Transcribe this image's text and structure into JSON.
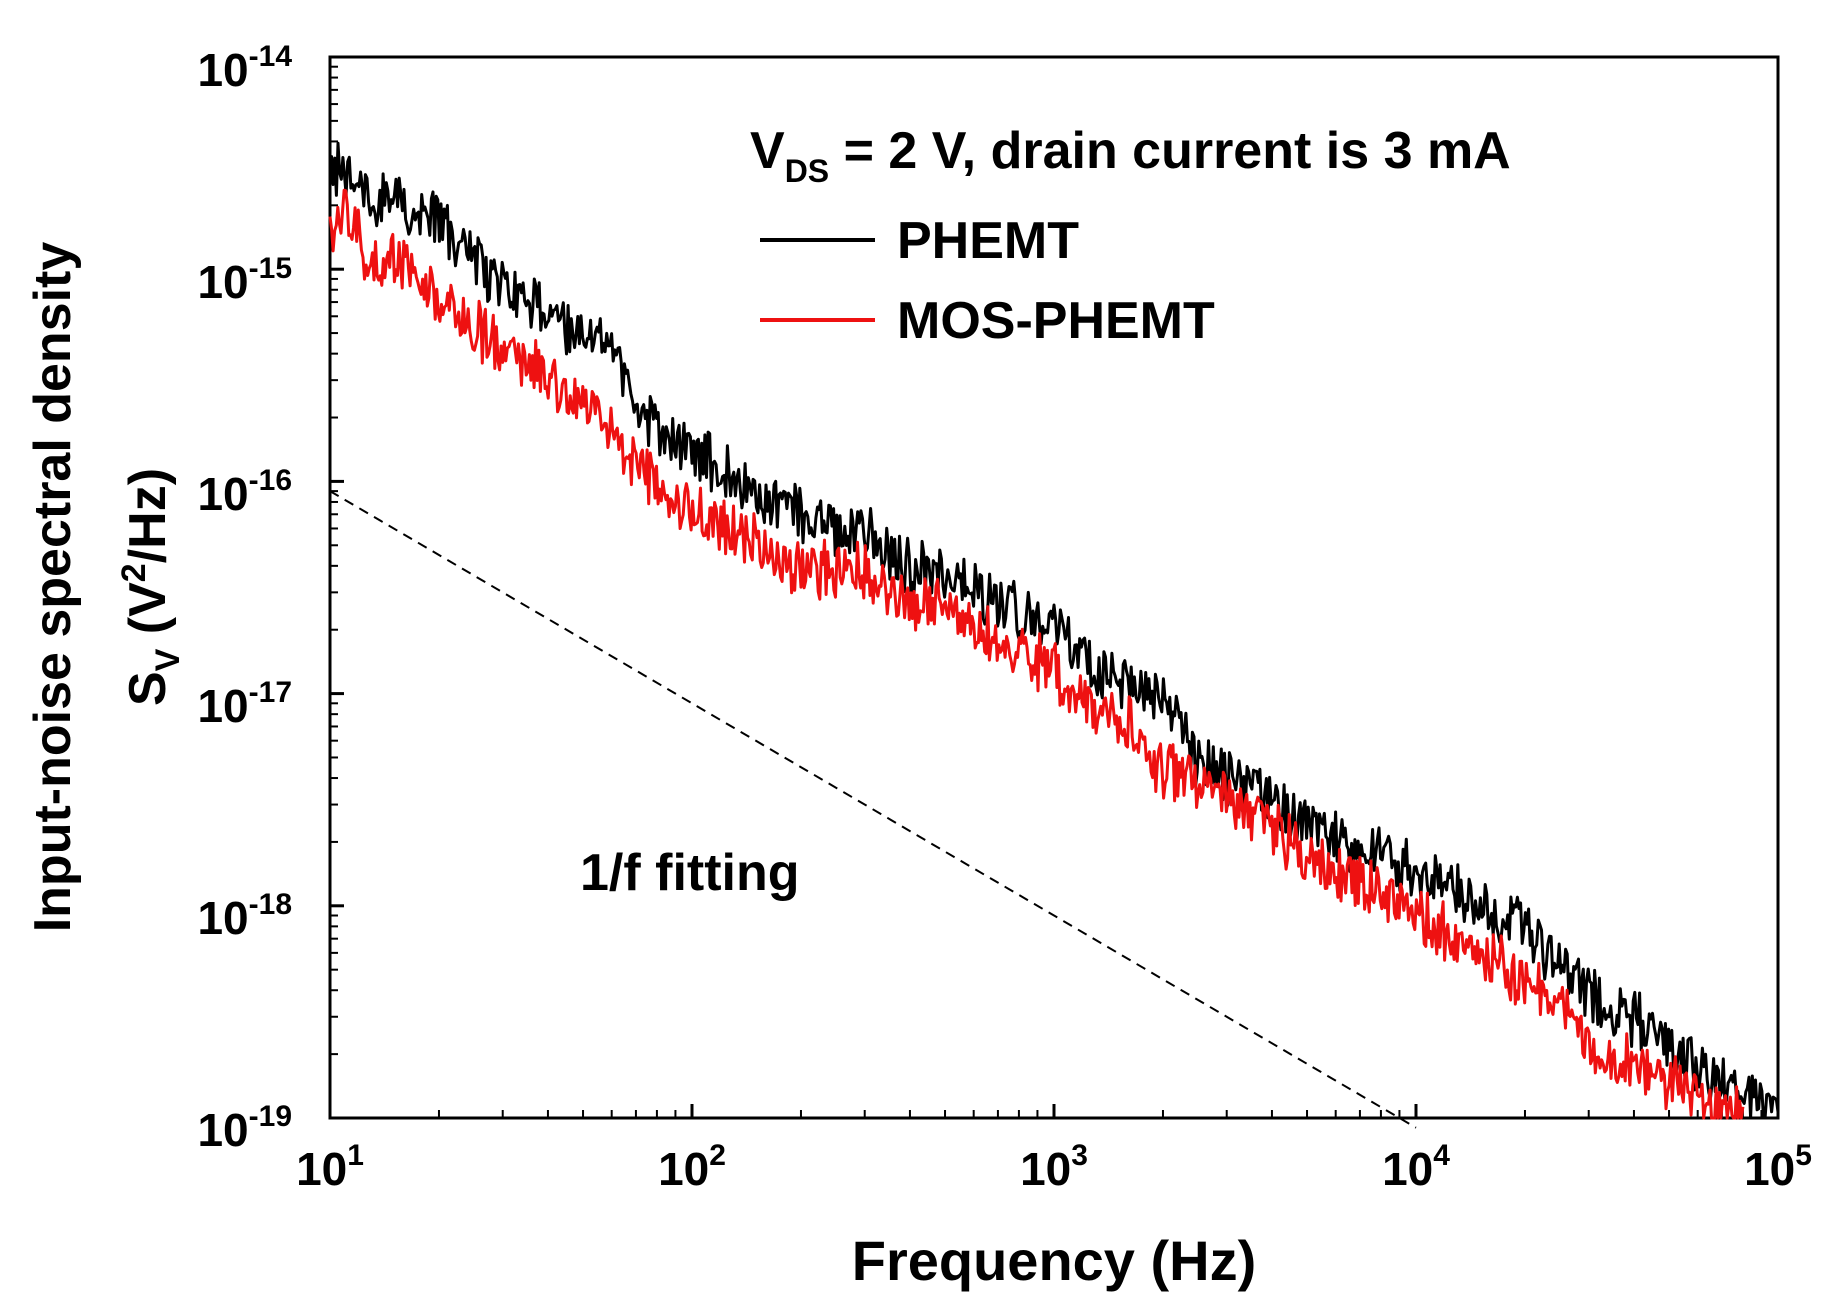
{
  "chart_data": {
    "type": "line",
    "title": "",
    "xlabel": "Frequency (Hz)",
    "ylabel": {
      "line1": "Input-noise spectral density",
      "symbol": "S",
      "symbol_sub": "V",
      "unit_open": " (V",
      "unit_sup": "2",
      "unit_close": "/Hz)"
    },
    "x_scale": "log",
    "y_scale": "log",
    "xlim": [
      10,
      100000
    ],
    "ylim": [
      1e-19,
      1e-14
    ],
    "x_ticks": [
      {
        "value": 10,
        "base": "10",
        "exp": "1"
      },
      {
        "value": 100,
        "base": "10",
        "exp": "2"
      },
      {
        "value": 1000,
        "base": "10",
        "exp": "3"
      },
      {
        "value": 10000,
        "base": "10",
        "exp": "4"
      },
      {
        "value": 100000,
        "base": "10",
        "exp": "5"
      }
    ],
    "y_ticks": [
      {
        "value": 1e-14,
        "base": "10",
        "exp": "-14"
      },
      {
        "value": 1e-15,
        "base": "10",
        "exp": "-15"
      },
      {
        "value": 1e-16,
        "base": "10",
        "exp": "-16"
      },
      {
        "value": 1e-17,
        "base": "10",
        "exp": "-17"
      },
      {
        "value": 1e-18,
        "base": "10",
        "exp": "-18"
      },
      {
        "value": 1e-19,
        "base": "10",
        "exp": "-19"
      }
    ],
    "grid": false,
    "legend_position": "top-right",
    "condition": {
      "prefix": "V",
      "sub": "DS",
      "rest": " = 2 V, drain current is 3 mA"
    },
    "series": [
      {
        "name": "PHEMT",
        "color": "#000000",
        "x": [
          10,
          12,
          15,
          20,
          25,
          30,
          40,
          50,
          60,
          70,
          85,
          100,
          120,
          150,
          200,
          250,
          300,
          400,
          500,
          700,
          1000,
          1300,
          1600,
          2000,
          2500,
          3000,
          4000,
          5000,
          7000,
          10000,
          13000,
          20000,
          25000,
          30000,
          40000,
          50000,
          60000,
          80000,
          100000
        ],
        "y": [
          3.2e-15,
          2.6e-15,
          2.1e-15,
          1.7e-15,
          1.2e-15,
          8.5e-16,
          6.5e-16,
          5.2e-16,
          4.3e-16,
          2.3e-16,
          1.7e-16,
          1.4e-16,
          1.25e-16,
          8.5e-17,
          7.5e-17,
          6e-17,
          6.2e-17,
          4e-17,
          3.8e-17,
          2.8e-17,
          2.1e-17,
          1.3e-17,
          1.05e-17,
          1.05e-17,
          4.8e-18,
          4.2e-18,
          3.3e-18,
          2.5e-18,
          1.9e-18,
          1.5e-18,
          1.2e-18,
          8e-19,
          5.2e-19,
          4e-19,
          3e-19,
          2.3e-19,
          1.8e-19,
          1.3e-19,
          1e-19
        ]
      },
      {
        "name": "MOS-PHEMT",
        "color": "#ee1111",
        "x": [
          10,
          11,
          13,
          15,
          20,
          25,
          30,
          40,
          50,
          60,
          70,
          85,
          100,
          120,
          150,
          200,
          300,
          400,
          500,
          700,
          1000,
          1300,
          1600,
          2000,
          2500,
          3000,
          4000,
          5000,
          7000,
          10000,
          13000,
          20000,
          25000,
          30000,
          40000,
          50000,
          60000,
          80000
        ],
        "y": [
          1.4e-15,
          1.9e-15,
          1.1e-15,
          1.2e-15,
          7.5e-16,
          5.5e-16,
          4.6e-16,
          3.2e-16,
          2.4e-16,
          1.7e-16,
          1.25e-16,
          9.5e-17,
          7.5e-17,
          6.5e-17,
          5.2e-17,
          4e-17,
          3.8e-17,
          2.8e-17,
          2.6e-17,
          1.8e-17,
          1.3e-17,
          8.5e-18,
          7.5e-18,
          4.5e-18,
          3.8e-18,
          3.3e-18,
          2.4e-18,
          1.7e-18,
          1.3e-18,
          9.5e-19,
          7e-19,
          4.6e-19,
          3.8e-19,
          2.2e-19,
          1.8e-19,
          1.5e-19,
          1.2e-19,
          1e-19
        ]
      }
    ],
    "fit_line": {
      "color": "#000000",
      "dash": "dashed",
      "x": [
        10,
        10000
      ],
      "y": [
        9e-17,
        9e-20
      ]
    },
    "annotation": "1/f fitting"
  }
}
